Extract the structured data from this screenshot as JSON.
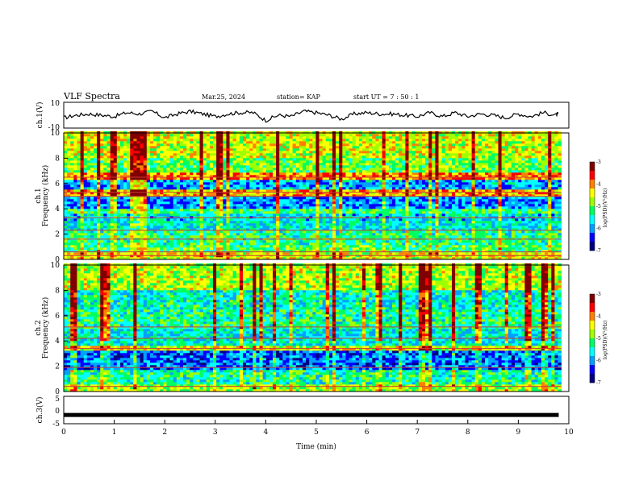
{
  "header": {
    "title": "VLF Spectra",
    "date": "Mar.25, 2024",
    "station": "station= KAP",
    "start": "start  UT =   7 : 50 : 1"
  },
  "chart_data": [
    {
      "id": "ch1-waveform",
      "type": "line",
      "ylabel": "ch.1(V)",
      "xlim": [
        0,
        10
      ],
      "ylim": [
        -10,
        10
      ],
      "yticks": [
        "10",
        "-10"
      ],
      "series": [
        {
          "x": [
            0,
            0.25,
            0.5,
            0.75,
            1,
            1.25,
            1.5,
            1.75,
            2,
            2.25,
            2.5,
            2.75,
            3,
            3.25,
            3.5,
            3.75,
            4,
            4.25,
            4.5,
            4.75,
            5,
            5.25,
            5.5,
            5.75,
            6,
            6.25,
            6.5,
            6.75,
            7,
            7.25,
            7.5,
            7.75,
            8,
            8.25,
            8.5,
            8.75,
            9,
            9.25,
            9.5,
            9.75,
            9.8
          ],
          "values": [
            -2,
            0,
            1,
            0,
            -1,
            2,
            1,
            3,
            -2,
            1,
            3,
            1,
            -1,
            1,
            2,
            2,
            -4,
            0,
            -1,
            3,
            2,
            0,
            -3,
            1,
            2,
            1,
            1,
            0,
            -1,
            2,
            -1,
            2,
            -1,
            1,
            0,
            -2,
            1,
            -1,
            2,
            0,
            1
          ]
        }
      ]
    },
    {
      "id": "ch1-spectrogram",
      "type": "heatmap",
      "title": "ch.1",
      "ylabel": "Frequency (kHz)",
      "xlim": [
        0,
        10
      ],
      "ylim": [
        0,
        10
      ],
      "yticks": [
        "0",
        "2",
        "4",
        "6",
        "8",
        "10"
      ],
      "colorbar": {
        "label": "log(PSD)(V²/Hz)",
        "ticks": [
          "-3",
          "-4",
          "-5",
          "-6",
          "-7"
        ],
        "range": [
          -7,
          -3
        ]
      },
      "bands": [
        {
          "from": 0,
          "to": 0.5,
          "value": -4.5
        },
        {
          "from": 0.5,
          "to": 1.2,
          "value": -5.1
        },
        {
          "from": 1.2,
          "to": 2.2,
          "value": -5.3
        },
        {
          "from": 2.2,
          "to": 3.0,
          "value": -5.6
        },
        {
          "from": 3.0,
          "to": 3.6,
          "value": -5.7
        },
        {
          "from": 3.6,
          "to": 4.0,
          "value": -5.2
        },
        {
          "from": 4.0,
          "to": 4.9,
          "value": -6.0
        },
        {
          "from": 4.9,
          "to": 5.5,
          "value": -4.2
        },
        {
          "from": 5.5,
          "to": 6.3,
          "value": -5.9
        },
        {
          "from": 6.3,
          "to": 6.8,
          "value": -4.0
        },
        {
          "from": 6.8,
          "to": 8.0,
          "value": -5.0
        },
        {
          "from": 8.0,
          "to": 10,
          "value": -4.6
        }
      ],
      "lines_khz": [
        0.3,
        0.6,
        1.6,
        2.3,
        3.3,
        5.0,
        5.3,
        6.5
      ]
    },
    {
      "id": "ch2-spectrogram",
      "type": "heatmap",
      "title": "ch.2",
      "ylabel": "Frequency (kHz)",
      "xlim": [
        0,
        10
      ],
      "ylim": [
        0,
        10
      ],
      "yticks": [
        "0",
        "2",
        "4",
        "6",
        "8",
        "10"
      ],
      "colorbar": {
        "label": "log(PSD)(V²/Hz)",
        "ticks": [
          "-3",
          "-4",
          "-5",
          "-6",
          "-7"
        ],
        "range": [
          -7,
          -3
        ]
      },
      "bands": [
        {
          "from": 0,
          "to": 0.6,
          "value": -4.8
        },
        {
          "from": 0.6,
          "to": 1.8,
          "value": -5.4
        },
        {
          "from": 1.8,
          "to": 3.3,
          "value": -6.2
        },
        {
          "from": 3.3,
          "to": 3.7,
          "value": -4.5
        },
        {
          "from": 3.7,
          "to": 5.0,
          "value": -5.6
        },
        {
          "from": 5.0,
          "to": 6.5,
          "value": -5.3
        },
        {
          "from": 6.5,
          "to": 8.0,
          "value": -5.5
        },
        {
          "from": 8.0,
          "to": 10,
          "value": -4.7
        }
      ],
      "lines_khz": [
        0.4,
        1.9,
        3.4,
        4.2,
        5.1
      ]
    },
    {
      "id": "ch3-waveform",
      "type": "line",
      "ylabel": "ch.3(V)",
      "xlabel": "Time  (min)",
      "xlim": [
        0,
        10
      ],
      "ylim": [
        -5,
        5
      ],
      "yticks": [
        "5",
        "0",
        "-5"
      ],
      "xticks": [
        "0",
        "1",
        "2",
        "3",
        "4",
        "5",
        "6",
        "7",
        "8",
        "9",
        "10"
      ],
      "series": [
        {
          "x": [
            0,
            9.8
          ],
          "values": [
            -1.8,
            -1.8
          ]
        }
      ]
    }
  ],
  "colors": {
    "colormap": [
      "#000080",
      "#0000ff",
      "#00a0ff",
      "#00ffff",
      "#00ff60",
      "#a0ff00",
      "#ffff00",
      "#ff8000",
      "#ff0000",
      "#800000"
    ]
  }
}
